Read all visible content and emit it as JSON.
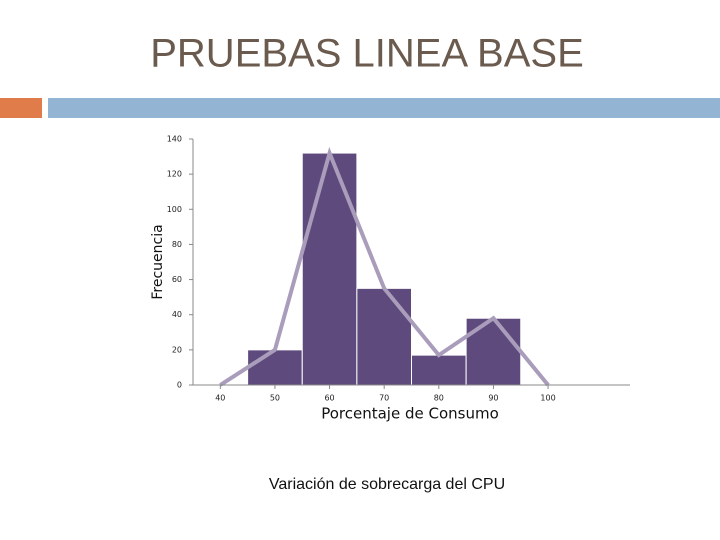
{
  "header": {
    "title": "PRUEBAS LINEA BASE"
  },
  "chart_data": {
    "type": "histogram",
    "xlabel": "Porcentaje de Consumo",
    "ylabel": "Frecuencia",
    "bins": [
      45,
      55,
      65,
      75,
      85,
      95
    ],
    "values": [
      20,
      132,
      55,
      17,
      38
    ],
    "color": "#5e4a7d",
    "polygon": {
      "x": [
        40,
        50,
        60,
        70,
        80,
        90,
        100
      ],
      "values": [
        0,
        20,
        132,
        55,
        17,
        38,
        0
      ],
      "color": "#a99dbb"
    },
    "xlim": [
      35,
      115
    ],
    "xticks": [
      40,
      50,
      60,
      70,
      80,
      90,
      100
    ],
    "ylim": [
      0,
      140
    ],
    "yticks": [
      0,
      20,
      40,
      60,
      80,
      100,
      120,
      140
    ]
  },
  "caption": "Variación de sobrecarga del CPU"
}
